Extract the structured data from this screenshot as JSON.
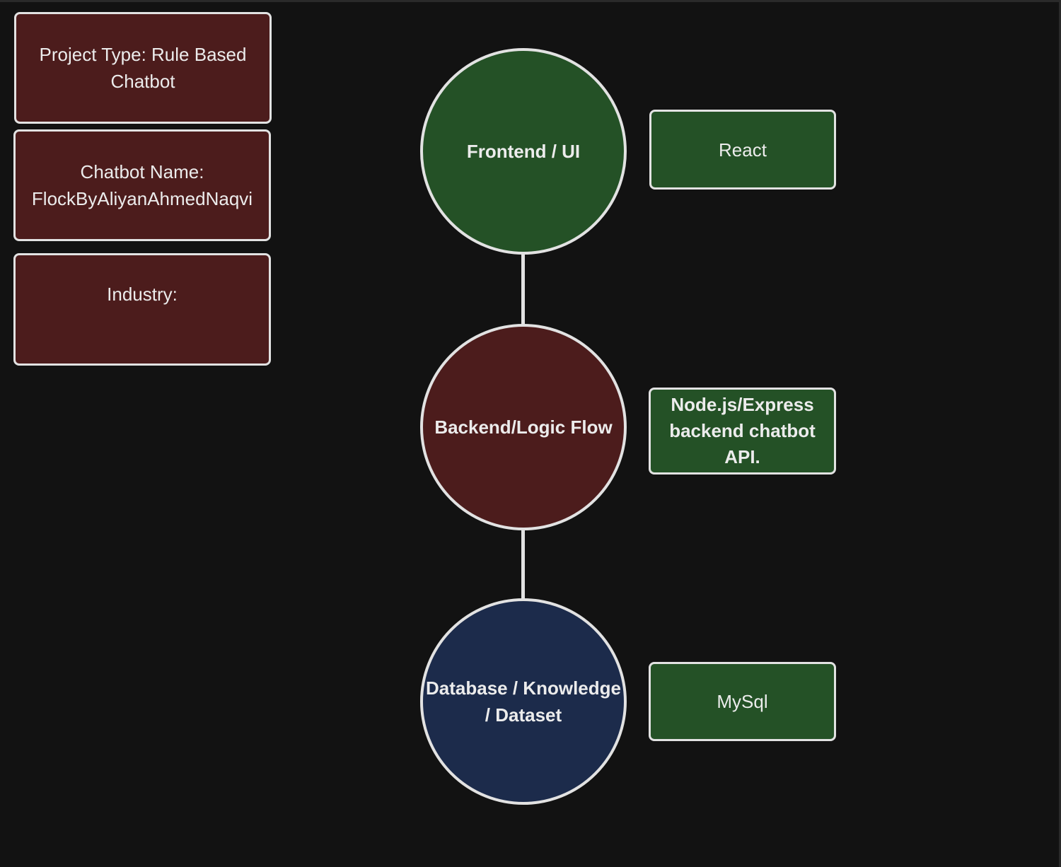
{
  "project_info": {
    "project_type": "Project Type: Rule Based\nChatbot",
    "chatbot_name": "Chatbot Name:\nFlockByAliyanAhmedNaqvi",
    "industry": "Industry:"
  },
  "layers": {
    "frontend": {
      "label": "Frontend / UI",
      "tech": "React"
    },
    "backend": {
      "label": "Backend/Logic Flow",
      "tech": "Node.js/Express\nbackend chatbot\nAPI."
    },
    "database": {
      "label": "Database / Knowledge\n/ Dataset",
      "tech": "MySql"
    }
  },
  "colors": {
    "background": "#121212",
    "frontend": "#245126",
    "backend": "#4c1c1c",
    "database": "#1c2b4b",
    "tech_box": "#245126",
    "info_box": "#4c1c1c",
    "stroke": "#e2e2e2"
  }
}
